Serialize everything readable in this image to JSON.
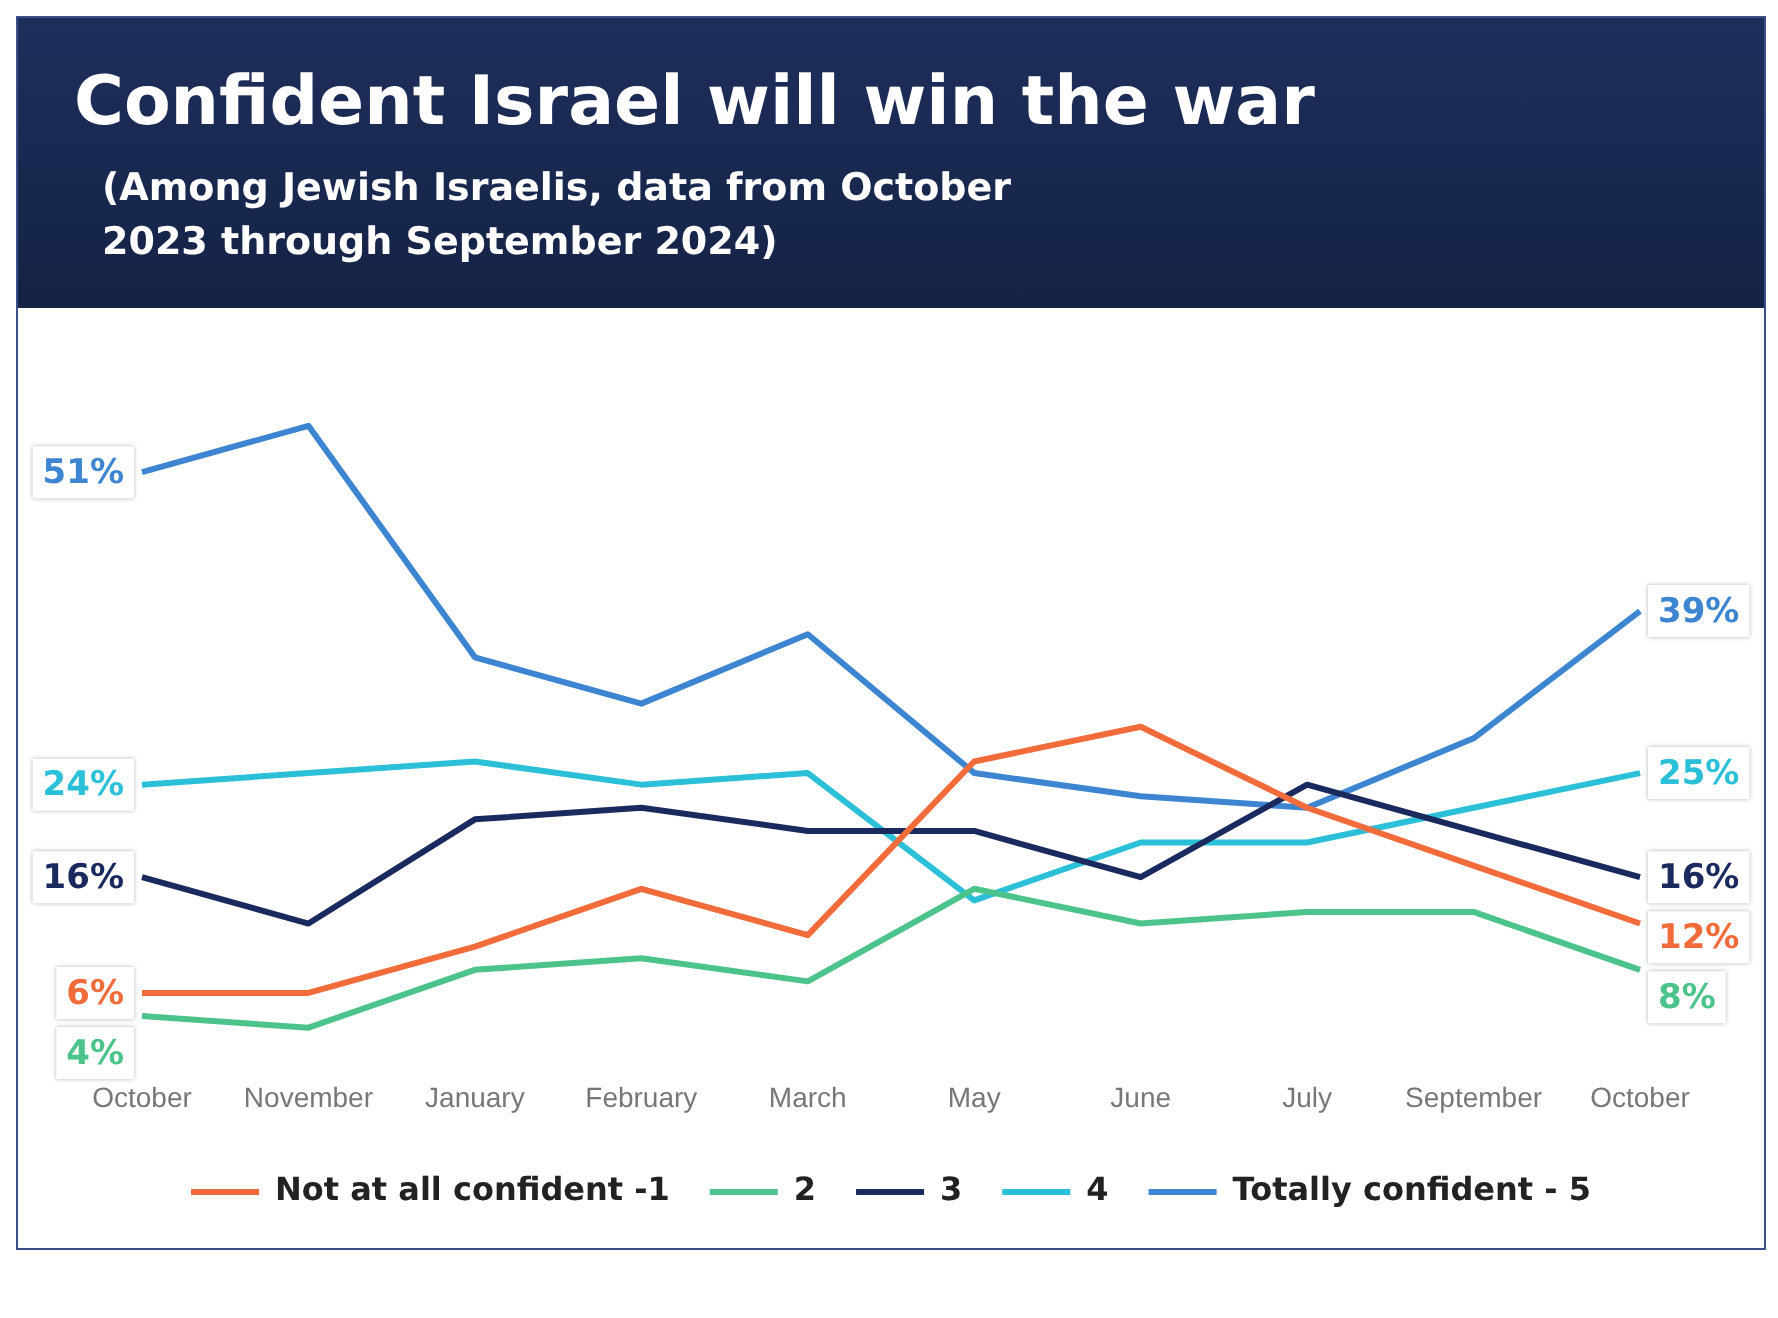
{
  "chart_data": {
    "type": "line",
    "title": "Confident Israel will win the war",
    "subtitle": "(Among Jewish Israelis, data from October 2023 through September 2024)",
    "categories": [
      "October",
      "November",
      "January",
      "February",
      "March",
      "May",
      "June",
      "July",
      "September",
      "October"
    ],
    "legend": "bottom",
    "grid": false,
    "marker": "none",
    "line_style": "solid",
    "series": [
      {
        "name": "Not at all confident -1",
        "color": "#f26b3a",
        "values": [
          6,
          6,
          10,
          15,
          11,
          26,
          29,
          22,
          17,
          12
        ],
        "value_labels": [
          "6%",
          null,
          null,
          null,
          null,
          null,
          null,
          null,
          null,
          "12%"
        ]
      },
      {
        "name": "2",
        "color": "#4cc38a",
        "values": [
          4,
          3,
          8,
          9,
          7,
          15,
          12,
          13,
          13,
          8
        ],
        "value_labels": [
          "4%",
          null,
          null,
          null,
          null,
          null,
          null,
          null,
          null,
          "8%"
        ]
      },
      {
        "name": "3",
        "color": "#1b2a5e",
        "values": [
          16,
          12,
          21,
          22,
          20,
          20,
          16,
          24,
          20,
          16
        ],
        "value_labels": [
          "16%",
          null,
          null,
          null,
          null,
          null,
          null,
          null,
          null,
          "16%"
        ]
      },
      {
        "name": "4",
        "color": "#2bc0d8",
        "values": [
          24,
          25,
          26,
          24,
          25,
          14,
          19,
          19,
          22,
          25
        ],
        "value_labels": [
          "24%",
          null,
          null,
          null,
          null,
          null,
          null,
          null,
          null,
          "25%"
        ]
      },
      {
        "name": "Totally confident - 5",
        "color": "#3d85d0",
        "values": [
          51,
          55,
          35,
          31,
          37,
          25,
          23,
          22,
          28,
          39
        ],
        "value_labels": [
          "51%",
          null,
          null,
          null,
          null,
          null,
          null,
          null,
          null,
          "39%"
        ]
      }
    ]
  }
}
